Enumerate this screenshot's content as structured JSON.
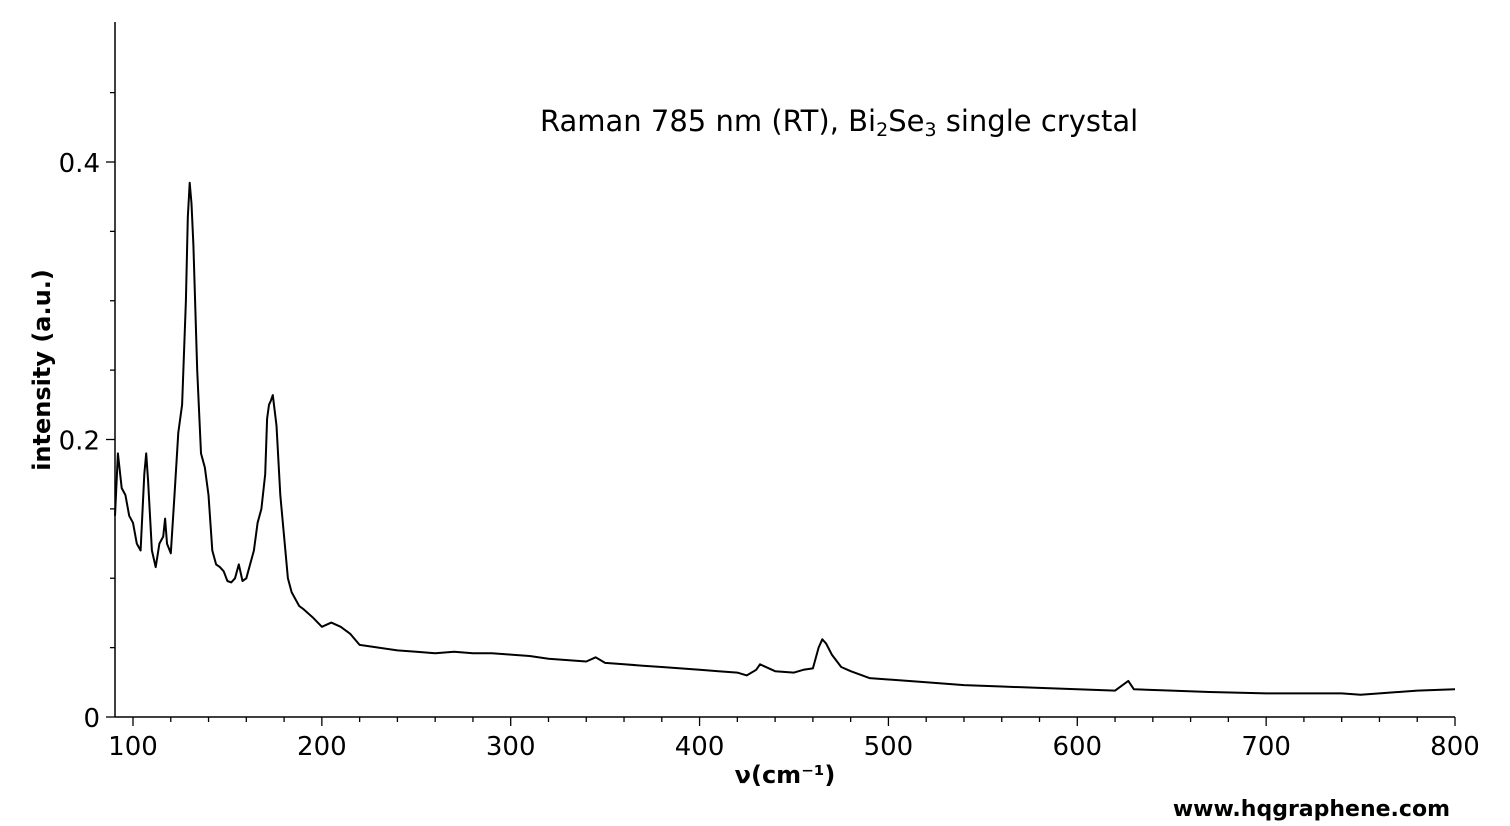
{
  "chart_data": {
    "type": "line",
    "title": "",
    "annotation": {
      "parts": [
        {
          "text": "Raman 785 nm (RT), Bi",
          "sub": false
        },
        {
          "text": "2",
          "sub": true
        },
        {
          "text": "Se",
          "sub": false
        },
        {
          "text": "3",
          "sub": true
        },
        {
          "text": " single crystal",
          "sub": false
        }
      ]
    },
    "xlabel": "ν(cm⁻¹)",
    "ylabel": "intensity (a.u.)",
    "xlim": [
      90,
      800
    ],
    "ylim": [
      0,
      0.5
    ],
    "x_ticks": [
      {
        "value": 100,
        "label": "100"
      },
      {
        "value": 200,
        "label": "200"
      },
      {
        "value": 300,
        "label": "300"
      },
      {
        "value": 400,
        "label": "400"
      },
      {
        "value": 500,
        "label": "500"
      },
      {
        "value": 600,
        "label": "600"
      },
      {
        "value": 700,
        "label": "700"
      },
      {
        "value": 800,
        "label": "800"
      }
    ],
    "x_minor_step": 20,
    "y_ticks": [
      {
        "value": 0,
        "label": "0"
      },
      {
        "value": 0.2,
        "label": "0.2"
      },
      {
        "value": 0.4,
        "label": "0.4"
      }
    ],
    "y_minor_step": 0.05,
    "grid": false,
    "line_color": "#000000",
    "series": [
      {
        "x": [
          90,
          92,
          94,
          96,
          98,
          100,
          102,
          104,
          106,
          107,
          108,
          110,
          112,
          114,
          116,
          117,
          118,
          120,
          122,
          124,
          126,
          128,
          129,
          130,
          131,
          132,
          134,
          136,
          138,
          140,
          142,
          144,
          146,
          148,
          150,
          152,
          154,
          156,
          158,
          160,
          162,
          164,
          166,
          168,
          170,
          171,
          172,
          173,
          174,
          176,
          178,
          180,
          182,
          184,
          186,
          188,
          190,
          195,
          200,
          205,
          210,
          215,
          220,
          230,
          240,
          250,
          260,
          270,
          280,
          290,
          300,
          310,
          320,
          330,
          340,
          345,
          350,
          360,
          370,
          380,
          390,
          400,
          410,
          420,
          425,
          430,
          432,
          440,
          450,
          455,
          460,
          463,
          465,
          467,
          470,
          475,
          480,
          490,
          500,
          520,
          540,
          560,
          580,
          600,
          620,
          627,
          630,
          650,
          670,
          700,
          720,
          740,
          750,
          760,
          780,
          800
        ],
        "y": [
          0.145,
          0.19,
          0.165,
          0.16,
          0.145,
          0.14,
          0.125,
          0.12,
          0.175,
          0.19,
          0.17,
          0.12,
          0.108,
          0.125,
          0.13,
          0.143,
          0.125,
          0.118,
          0.16,
          0.205,
          0.225,
          0.3,
          0.36,
          0.385,
          0.37,
          0.34,
          0.25,
          0.19,
          0.18,
          0.16,
          0.12,
          0.11,
          0.108,
          0.105,
          0.098,
          0.097,
          0.1,
          0.11,
          0.098,
          0.1,
          0.11,
          0.12,
          0.14,
          0.15,
          0.175,
          0.215,
          0.225,
          0.228,
          0.232,
          0.21,
          0.16,
          0.13,
          0.1,
          0.09,
          0.085,
          0.08,
          0.078,
          0.072,
          0.065,
          0.068,
          0.065,
          0.06,
          0.052,
          0.05,
          0.048,
          0.047,
          0.046,
          0.047,
          0.046,
          0.046,
          0.045,
          0.044,
          0.042,
          0.041,
          0.04,
          0.043,
          0.039,
          0.038,
          0.037,
          0.036,
          0.035,
          0.034,
          0.033,
          0.032,
          0.03,
          0.034,
          0.038,
          0.033,
          0.032,
          0.034,
          0.035,
          0.05,
          0.056,
          0.053,
          0.045,
          0.036,
          0.033,
          0.028,
          0.027,
          0.025,
          0.023,
          0.022,
          0.021,
          0.02,
          0.019,
          0.026,
          0.02,
          0.019,
          0.018,
          0.017,
          0.017,
          0.017,
          0.016,
          0.017,
          0.019,
          0.02
        ]
      }
    ]
  },
  "credit": "www.hqgraphene.com"
}
